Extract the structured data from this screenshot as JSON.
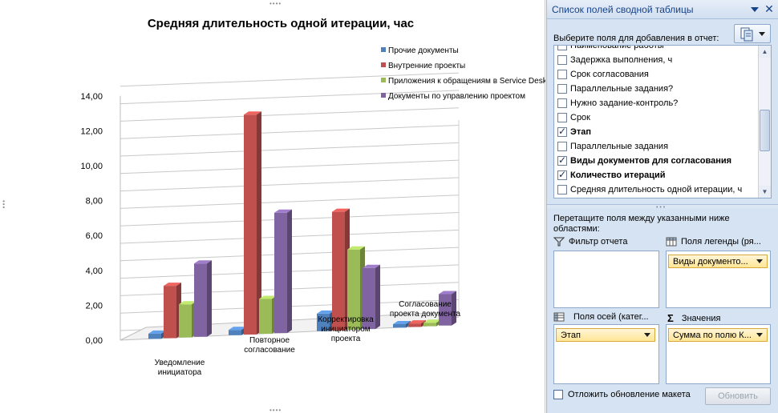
{
  "chart_data": {
    "type": "bar",
    "title": "Средняя длительность одной итерации, час",
    "xlabel": "",
    "ylabel": "",
    "ylim": [
      0,
      14
    ],
    "y_ticks": [
      "0,00",
      "2,00",
      "4,00",
      "6,00",
      "8,00",
      "10,00",
      "12,00",
      "14,00"
    ],
    "grid": true,
    "legend_position": "top-right",
    "categories": [
      [
        "Уведомление",
        "инициатора"
      ],
      [
        "Повторное",
        "согласование"
      ],
      [
        "Корректировка",
        "инициатором",
        "проекта"
      ],
      [
        "Согласование",
        "проекта документа"
      ]
    ],
    "series": [
      {
        "name": "Прочие документы",
        "color": "#4f81bd",
        "values": [
          0.3,
          0.3,
          1.0,
          0.2
        ]
      },
      {
        "name": "Внутренние проекты",
        "color": "#c0504d",
        "values": [
          3.0,
          12.6,
          6.8,
          0.2
        ]
      },
      {
        "name": "Приложения к обращениям в Service Desk",
        "color": "#9bbb59",
        "values": [
          1.9,
          2.0,
          4.6,
          0.2
        ]
      },
      {
        "name": "Документы по управлению проектом",
        "color": "#8064a2",
        "values": [
          4.2,
          6.9,
          3.5,
          1.8
        ]
      }
    ]
  },
  "pane": {
    "title": "Список полей сводной таблицы",
    "prompt": "Выберите поля для добавления в отчет:",
    "fields": [
      {
        "label": "Наименование работы",
        "checked": false,
        "bold": false
      },
      {
        "label": "Задержка выполнения, ч",
        "checked": false,
        "bold": false
      },
      {
        "label": "Срок согласования",
        "checked": false,
        "bold": false
      },
      {
        "label": "Параллельные задания?",
        "checked": false,
        "bold": false
      },
      {
        "label": "Нужно задание-контроль?",
        "checked": false,
        "bold": false
      },
      {
        "label": "Срок",
        "checked": false,
        "bold": false
      },
      {
        "label": "Этап",
        "checked": true,
        "bold": true
      },
      {
        "label": "Параллельные задания",
        "checked": false,
        "bold": false
      },
      {
        "label": "Виды документов для согласования",
        "checked": true,
        "bold": true
      },
      {
        "label": "Количество итераций",
        "checked": true,
        "bold": true
      },
      {
        "label": "Средняя длительность одной итерации, ч",
        "checked": false,
        "bold": false
      }
    ],
    "drag_text": "Перетащите поля между указанными ниже областями:",
    "areas": {
      "filter_label": "Фильтр отчета",
      "legend_label": "Поля легенды (ря...",
      "legend_chip": "Виды документо...",
      "axis_label": "Поля осей (катег...",
      "axis_chip": "Этап",
      "values_label": "Значения",
      "values_chip": "Сумма по полю К..."
    },
    "defer_label": "Отложить обновление макета",
    "update_button": "Обновить"
  }
}
